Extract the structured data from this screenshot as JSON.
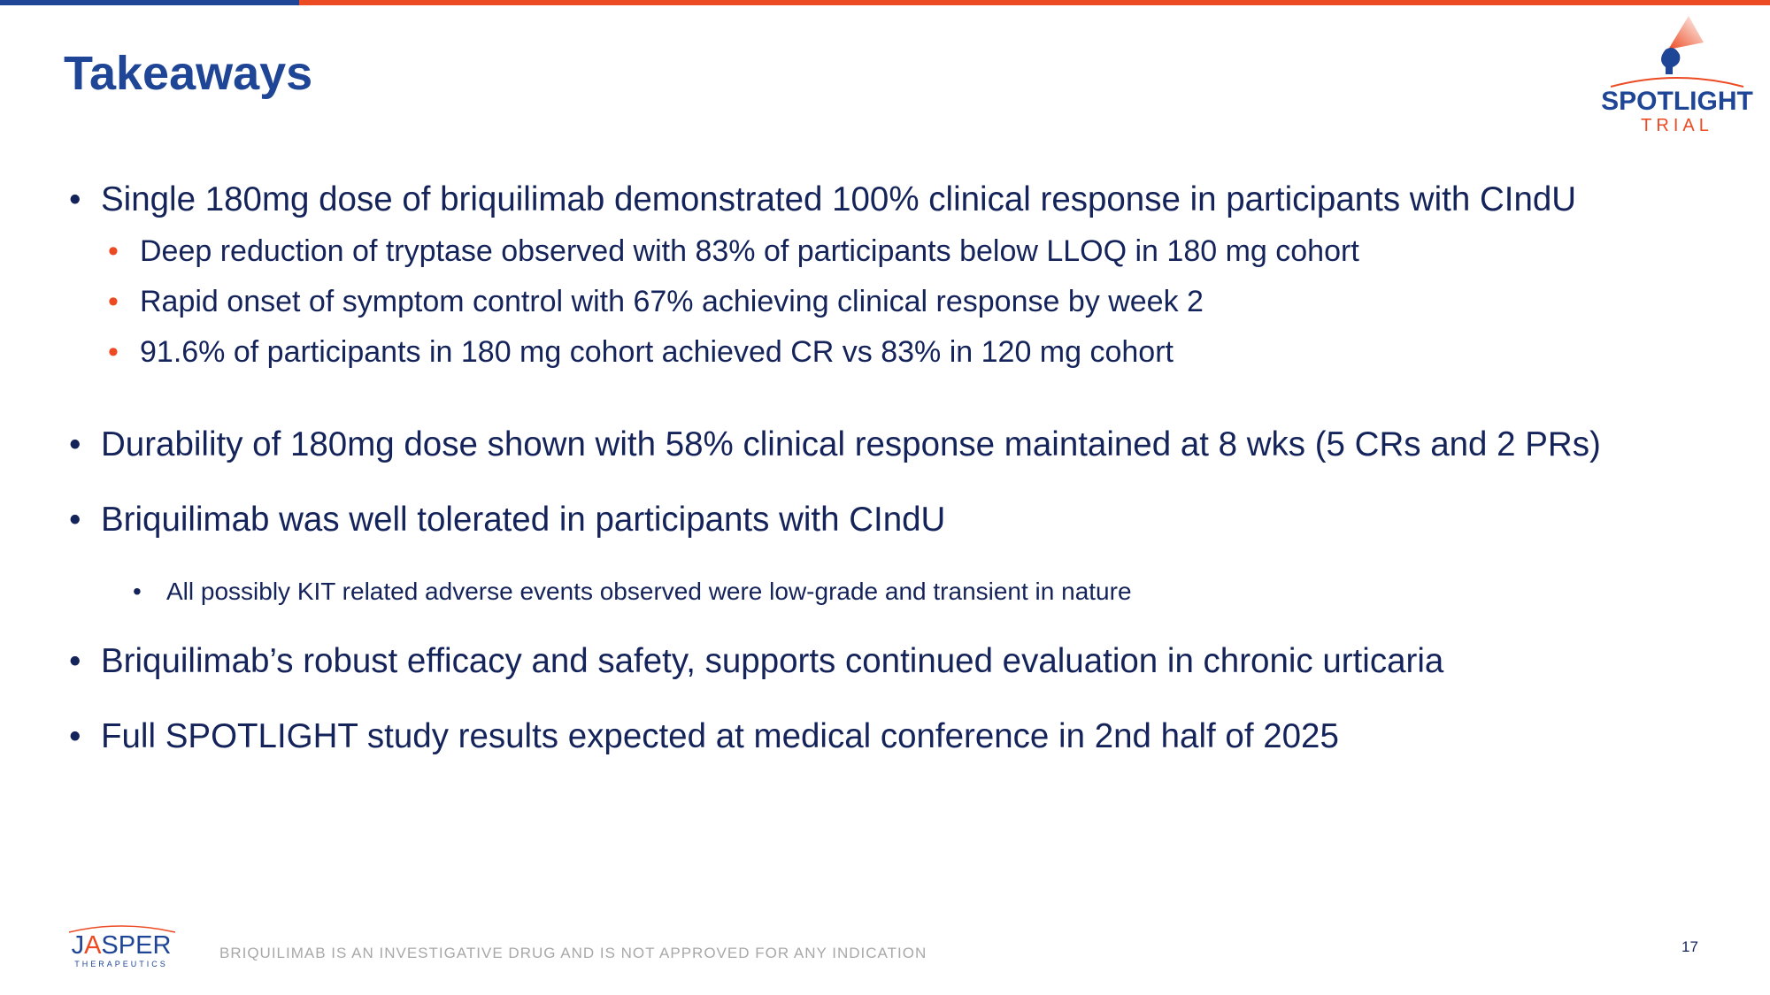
{
  "header": {
    "title": "Takeaways",
    "accent_colors": {
      "blue": "#1f4596",
      "orange": "#ec4a22"
    }
  },
  "logo": {
    "name": "SPOTLIGHT",
    "sub": "TRIAL"
  },
  "bullets": [
    {
      "text": "Single 180mg dose of briquilimab demonstrated 100% clinical response in participants with CIndU",
      "children": [
        "Deep reduction of tryptase observed with 83% of participants below LLOQ in 180 mg cohort",
        "Rapid onset of symptom control with 67% achieving clinical response by week 2",
        "91.6% of participants in 180 mg cohort achieved CR vs 83% in 120 mg cohort"
      ]
    },
    {
      "text": "Durability of 180mg dose shown with 58% clinical response maintained at 8 wks (5 CRs and 2 PRs)"
    },
    {
      "text": "Briquilimab was well tolerated in participants with CIndU",
      "children": [
        "All possibly KIT related adverse events observed were low-grade and transient in nature"
      ]
    },
    {
      "text": "Briquilimab’s robust efficacy and safety, supports continued evaluation in chronic urticaria"
    },
    {
      "text": "Full SPOTLIGHT study results expected at medical conference in 2nd half of 2025"
    }
  ],
  "footer": {
    "company_logo": {
      "name": "JASPER",
      "sub": "THERAPEUTICS"
    },
    "disclaimer": "BRIQUILIMAB IS AN INVESTIGATIVE DRUG AND IS NOT APPROVED FOR ANY INDICATION",
    "page_number": "17"
  }
}
